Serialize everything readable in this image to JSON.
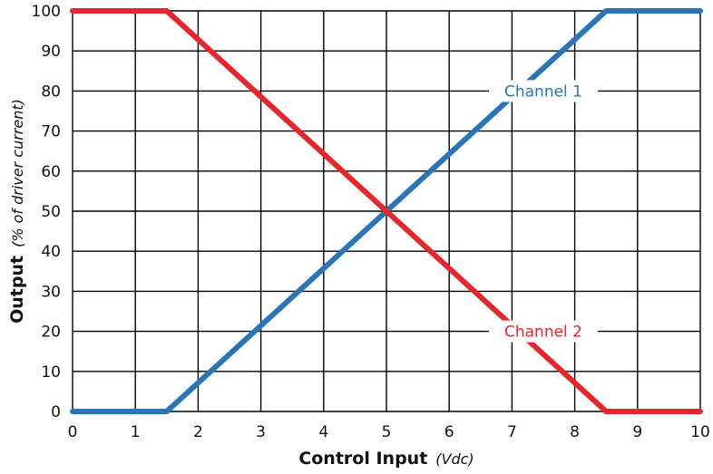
{
  "chart_data": {
    "type": "line",
    "xlabel": {
      "main": "Control Input",
      "unit": "(Vdc)"
    },
    "ylabel": {
      "main": "Output",
      "unit": "(% of driver current)"
    },
    "xlim": [
      0,
      10
    ],
    "ylim": [
      0,
      100
    ],
    "x_ticks": [
      0,
      1,
      2,
      3,
      4,
      5,
      6,
      7,
      8,
      9,
      10
    ],
    "y_ticks": [
      0,
      10,
      20,
      30,
      40,
      50,
      60,
      70,
      80,
      90,
      100
    ],
    "grid": true,
    "series": [
      {
        "name": "Channel 1",
        "color": "#2a74b8",
        "points": [
          [
            0,
            0
          ],
          [
            1.5,
            0
          ],
          [
            8.5,
            100
          ],
          [
            10,
            100
          ]
        ],
        "label_at": [
          7.5,
          80
        ]
      },
      {
        "name": "Channel 2",
        "color": "#e5262d",
        "points": [
          [
            0,
            100
          ],
          [
            1.5,
            100
          ],
          [
            8.5,
            0
          ],
          [
            10,
            0
          ]
        ],
        "label_at": [
          7.5,
          20
        ]
      }
    ]
  }
}
